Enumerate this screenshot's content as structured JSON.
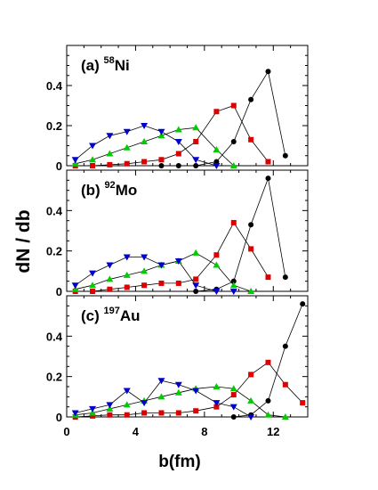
{
  "chart_data": {
    "type": "line",
    "ylabel": "dN / db",
    "xlabel": "b(fm)",
    "xlim": [
      0,
      14
    ],
    "xticks": [
      0,
      4,
      8,
      12
    ],
    "ylim": [
      0,
      0.6
    ],
    "yticks": [
      0,
      0.2,
      0.4
    ],
    "ytick_labels": [
      "0",
      "0.2",
      "0.4"
    ],
    "grid": false,
    "colors": {
      "black": "#000000",
      "red": "#dd0000",
      "green": "#00cc00",
      "blue": "#0000cc"
    },
    "panels": [
      {
        "label": "(a)",
        "isotope_mass": "58",
        "element": "Ni",
        "series": [
          {
            "color": "black",
            "marker": "circle",
            "x": [
              5.5,
              6.5,
              7.5,
              8.7,
              9.7,
              10.7,
              11.7,
              12.7
            ],
            "y": [
              0,
              0,
              0,
              0.02,
              0.12,
              0.33,
              0.47,
              0.05
            ]
          },
          {
            "color": "red",
            "marker": "square",
            "x": [
              0.5,
              1.5,
              2.5,
              3.5,
              4.5,
              5.5,
              6.5,
              7.5,
              8.7,
              9.7,
              10.7,
              11.7
            ],
            "y": [
              0,
              0,
              0.005,
              0.01,
              0.02,
              0.03,
              0.06,
              0.12,
              0.27,
              0.3,
              0.13,
              0.02
            ]
          },
          {
            "color": "green",
            "marker": "triangle-up",
            "x": [
              0.5,
              1.5,
              2.5,
              3.5,
              4.5,
              5.5,
              6.5,
              7.5,
              8.7,
              9.7
            ],
            "y": [
              0.01,
              0.03,
              0.06,
              0.09,
              0.12,
              0.15,
              0.18,
              0.19,
              0.08,
              0
            ]
          },
          {
            "color": "blue",
            "marker": "triangle-down",
            "x": [
              0.5,
              1.5,
              2.5,
              3.5,
              4.5,
              5.5,
              6.5,
              7.5,
              8.7
            ],
            "y": [
              0.03,
              0.1,
              0.15,
              0.17,
              0.2,
              0.17,
              0.12,
              0.03,
              0
            ]
          }
        ]
      },
      {
        "label": "(b)",
        "isotope_mass": "92",
        "element": "Mo",
        "series": [
          {
            "color": "black",
            "marker": "circle",
            "x": [
              7.5,
              8.7,
              9.7,
              10.7,
              11.7,
              12.7
            ],
            "y": [
              0,
              0.01,
              0.05,
              0.33,
              0.56,
              0.07
            ]
          },
          {
            "color": "red",
            "marker": "square",
            "x": [
              0.5,
              1.5,
              2.5,
              3.5,
              4.5,
              5.5,
              6.5,
              7.5,
              8.7,
              9.7,
              10.7,
              11.7
            ],
            "y": [
              0,
              0,
              0.01,
              0.02,
              0.03,
              0.04,
              0.04,
              0.06,
              0.18,
              0.34,
              0.21,
              0.07
            ]
          },
          {
            "color": "green",
            "marker": "triangle-up",
            "x": [
              0.5,
              1.5,
              2.5,
              3.5,
              4.5,
              5.5,
              6.5,
              7.5,
              8.7,
              9.7,
              10.7
            ],
            "y": [
              0.01,
              0.03,
              0.06,
              0.08,
              0.1,
              0.13,
              0.15,
              0.19,
              0.13,
              0.03,
              0
            ]
          },
          {
            "color": "blue",
            "marker": "triangle-down",
            "x": [
              0.5,
              1.5,
              2.5,
              3.5,
              4.5,
              5.5,
              6.5,
              7.5,
              8.7,
              9.7
            ],
            "y": [
              0.03,
              0.09,
              0.13,
              0.17,
              0.17,
              0.13,
              0.15,
              0.03,
              0,
              0
            ]
          }
        ]
      },
      {
        "label": "(c)",
        "isotope_mass": "197",
        "element": "Au",
        "series": [
          {
            "color": "black",
            "marker": "circle",
            "x": [
              9.7,
              10.7,
              11.7,
              12.7,
              13.7
            ],
            "y": [
              0,
              0.01,
              0.08,
              0.35,
              0.56
            ]
          },
          {
            "color": "red",
            "marker": "square",
            "x": [
              0.5,
              1.5,
              2.5,
              3.5,
              4.5,
              5.5,
              6.5,
              7.5,
              8.7,
              9.7,
              10.7,
              11.7,
              12.7,
              13.7
            ],
            "y": [
              0,
              0.005,
              0.01,
              0.01,
              0.02,
              0.02,
              0.02,
              0.03,
              0.05,
              0.11,
              0.21,
              0.27,
              0.16,
              0.07
            ]
          },
          {
            "color": "green",
            "marker": "triangle-up",
            "x": [
              0.5,
              1.5,
              2.5,
              3.5,
              4.5,
              5.5,
              6.5,
              7.5,
              8.7,
              9.7,
              10.7,
              11.7,
              12.7
            ],
            "y": [
              0.01,
              0.02,
              0.04,
              0.06,
              0.08,
              0.1,
              0.12,
              0.14,
              0.15,
              0.14,
              0.08,
              0.01,
              0
            ]
          },
          {
            "color": "blue",
            "marker": "triangle-down",
            "x": [
              0.5,
              1.5,
              2.5,
              3.5,
              4.5,
              5.5,
              6.5,
              7.5,
              8.7,
              9.7,
              10.7
            ],
            "y": [
              0.02,
              0.04,
              0.06,
              0.13,
              0.07,
              0.18,
              0.16,
              0.13,
              0.07,
              0.05,
              0
            ]
          }
        ]
      }
    ]
  }
}
